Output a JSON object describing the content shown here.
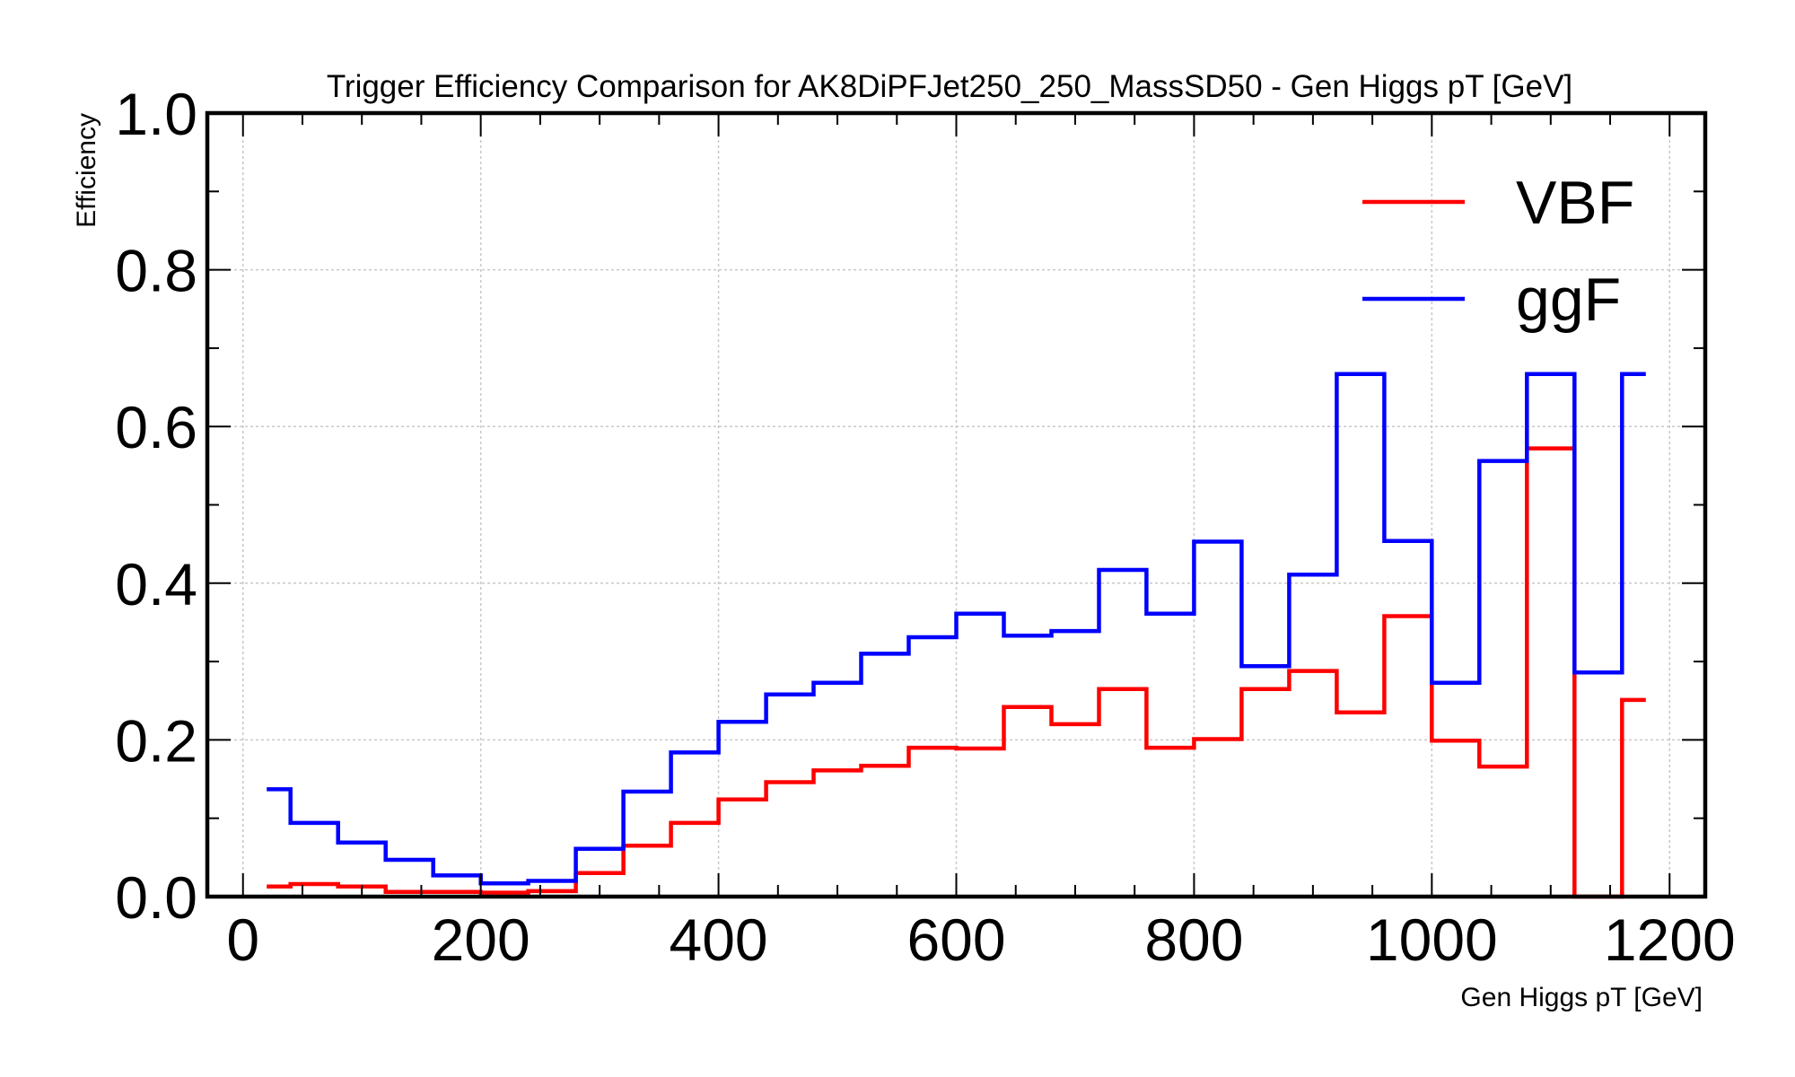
{
  "chart_data": {
    "type": "line",
    "style": "step-histogram",
    "title": "Trigger Efficiency Comparison for AK8DiPFJet250_250_MassSD50 - Gen Higgs pT [GeV]",
    "xlabel": "Gen Higgs pT [GeV]",
    "ylabel": "Efficiency",
    "xlim": [
      -30,
      1230
    ],
    "ylim": [
      0,
      1.0
    ],
    "x_major_ticks": [
      0,
      200,
      400,
      600,
      800,
      1000,
      1200
    ],
    "x_major_tick_labels": [
      "0",
      "200",
      "400",
      "600",
      "800",
      "1000",
      "1200"
    ],
    "y_major_ticks": [
      0,
      0.2,
      0.4,
      0.6,
      0.8,
      1.0
    ],
    "y_major_tick_labels": [
      "0.0",
      "0.2",
      "0.4",
      "0.6",
      "0.8",
      "1.0"
    ],
    "x_minor_step": 50,
    "y_minor_step": 0.1,
    "grid": true,
    "legend_position": "top-right",
    "bin_edges": [
      20,
      40,
      80,
      120,
      160,
      200,
      240,
      280,
      320,
      360,
      400,
      440,
      480,
      520,
      560,
      600,
      640,
      680,
      720,
      760,
      800,
      840,
      880,
      920,
      960,
      1000,
      1040,
      1080,
      1120,
      1160,
      1180
    ],
    "series": [
      {
        "name": "VBF",
        "color": "#ff0000",
        "values": [
          0.013,
          0.016,
          0.013,
          0.006,
          0.006,
          0.005,
          0.007,
          0.03,
          0.065,
          0.094,
          0.124,
          0.146,
          0.161,
          0.167,
          0.19,
          0.189,
          0.242,
          0.22,
          0.265,
          0.19,
          0.201,
          0.265,
          0.288,
          0.235,
          0.358,
          0.199,
          0.166,
          0.572,
          0.0,
          0.251
        ]
      },
      {
        "name": "ggF",
        "color": "#0000ff",
        "values": [
          0.137,
          0.094,
          0.069,
          0.047,
          0.027,
          0.017,
          0.02,
          0.061,
          0.134,
          0.184,
          0.223,
          0.258,
          0.273,
          0.31,
          0.331,
          0.361,
          0.333,
          0.339,
          0.417,
          0.361,
          0.453,
          0.294,
          0.411,
          0.667,
          0.454,
          0.273,
          0.556,
          0.667,
          0.286,
          0.667
        ]
      }
    ]
  }
}
